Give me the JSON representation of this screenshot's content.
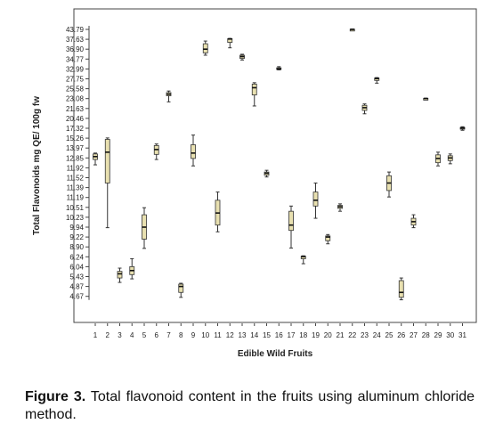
{
  "caption": {
    "label": "Figure 3.",
    "text": "Total flavonoid content in the fruits using aluminum chloride method."
  },
  "chart_data": {
    "type": "boxplot",
    "xlabel": "Edible Wild Fruits",
    "ylabel": "Total Flavonoids mg QE/ 100g fw",
    "y_ticks": [
      "43.79",
      "37.63",
      "36.90",
      "34.77",
      "32.99",
      "27.75",
      "25.58",
      "23.08",
      "21.63",
      "20.46",
      "17.32",
      "15.26",
      "13.97",
      "12.85",
      "11.92",
      "11.52",
      "11.39",
      "11.19",
      "10.51",
      "10.23",
      "9.94",
      "9.22",
      "8.90",
      "6.24",
      "6.04",
      "5.43",
      "4.87",
      "4.67"
    ],
    "categories": [
      "1",
      "2",
      "3",
      "4",
      "5",
      "6",
      "7",
      "8",
      "9",
      "10",
      "11",
      "12",
      "13",
      "14",
      "15",
      "16",
      "17",
      "18",
      "19",
      "20",
      "21",
      "22",
      "23",
      "24",
      "25",
      "26",
      "27",
      "28",
      "29",
      "30",
      "31"
    ],
    "boxes": [
      {
        "x": "1",
        "min": 12.2,
        "q1": 12.7,
        "median": 13.0,
        "q3": 13.3,
        "max": 13.4
      },
      {
        "x": "2",
        "min": 9.9,
        "q1": 11.45,
        "median": 13.5,
        "q3": 15.1,
        "max": 15.3
      },
      {
        "x": "3",
        "min": 5.1,
        "q1": 5.35,
        "median": 5.6,
        "q3": 5.75,
        "max": 5.95
      },
      {
        "x": "4",
        "min": 5.3,
        "q1": 5.55,
        "median": 5.8,
        "q3": 6.04,
        "max": 6.2
      },
      {
        "x": "5",
        "min": 8.5,
        "q1": 9.15,
        "median": 9.94,
        "q3": 10.3,
        "max": 10.5
      },
      {
        "x": "6",
        "min": 12.7,
        "q1": 13.25,
        "median": 13.8,
        "q3": 14.3,
        "max": 14.5
      },
      {
        "x": "7",
        "min": 22.6,
        "q1": 23.8,
        "median": 24.2,
        "q3": 24.6,
        "max": 25.0
      },
      {
        "x": "8",
        "min": 4.65,
        "q1": 4.75,
        "median": 4.87,
        "q3": 5.0,
        "max": 5.05
      },
      {
        "x": "9",
        "min": 12.1,
        "q1": 12.8,
        "median": 13.4,
        "q3": 14.4,
        "max": 15.9
      },
      {
        "x": "10",
        "min": 35.6,
        "q1": 36.1,
        "median": 36.9,
        "q3": 37.3,
        "max": 37.5
      },
      {
        "x": "11",
        "min": 9.6,
        "q1": 10.0,
        "median": 10.35,
        "q3": 11.0,
        "max": 11.3
      },
      {
        "x": "12",
        "min": 37.0,
        "q1": 37.4,
        "median": 37.8,
        "q3": 38.0,
        "max": 38.2
      },
      {
        "x": "13",
        "min": 34.6,
        "q1": 34.9,
        "median": 35.3,
        "q3": 35.6,
        "max": 35.8
      },
      {
        "x": "14",
        "min": 22.0,
        "q1": 24.0,
        "median": 25.8,
        "q3": 26.6,
        "max": 26.9
      },
      {
        "x": "15",
        "min": 11.55,
        "q1": 11.62,
        "median": 11.7,
        "q3": 11.75,
        "max": 11.82
      },
      {
        "x": "16",
        "min": 32.5,
        "q1": 32.8,
        "median": 32.99,
        "q3": 33.2,
        "max": 33.4
      },
      {
        "x": "17",
        "min": 8.6,
        "q1": 9.7,
        "median": 10.0,
        "q3": 10.4,
        "max": 10.6
      },
      {
        "x": "18",
        "min": 6.1,
        "q1": 6.2,
        "median": 6.3,
        "q3": 6.4,
        "max": 6.5
      },
      {
        "x": "19",
        "min": 10.2,
        "q1": 10.6,
        "median": 11.0,
        "q3": 11.3,
        "max": 11.45
      },
      {
        "x": "20",
        "min": 9.0,
        "q1": 9.1,
        "median": 9.22,
        "q3": 9.3,
        "max": 9.4
      },
      {
        "x": "21",
        "min": 10.4,
        "q1": 10.48,
        "median": 10.55,
        "q3": 10.65,
        "max": 10.75
      },
      {
        "x": "22",
        "min": 43.6,
        "q1": 43.7,
        "median": 43.79,
        "q3": 43.9,
        "max": 44.0
      },
      {
        "x": "23",
        "min": 21.0,
        "q1": 21.4,
        "median": 21.75,
        "q3": 22.1,
        "max": 22.3
      },
      {
        "x": "24",
        "min": 26.8,
        "q1": 27.4,
        "median": 27.9,
        "q3": 28.2,
        "max": 28.4
      },
      {
        "x": "25",
        "min": 11.2,
        "q1": 11.33,
        "median": 11.45,
        "q3": 11.6,
        "max": 11.75
      },
      {
        "x": "26",
        "min": 4.6,
        "q1": 4.65,
        "median": 4.75,
        "q3": 5.2,
        "max": 5.35
      },
      {
        "x": "27",
        "min": 9.9,
        "q1": 10.0,
        "median": 10.1,
        "q3": 10.2,
        "max": 10.3
      },
      {
        "x": "28",
        "min": 23.0,
        "q1": 23.05,
        "median": 23.1,
        "q3": 23.15,
        "max": 23.2
      },
      {
        "x": "29",
        "min": 12.1,
        "q1": 12.4,
        "median": 12.8,
        "q3": 13.2,
        "max": 13.5
      },
      {
        "x": "30",
        "min": 12.3,
        "q1": 12.6,
        "median": 12.85,
        "q3": 13.1,
        "max": 13.3
      },
      {
        "x": "31",
        "min": 16.9,
        "q1": 17.15,
        "median": 17.4,
        "q3": 17.6,
        "max": 17.8
      }
    ],
    "grid": false,
    "legend": "none",
    "colors": {
      "box_fill": "#e8e0b0",
      "stroke": "#333333",
      "background": "#ffffff"
    }
  }
}
